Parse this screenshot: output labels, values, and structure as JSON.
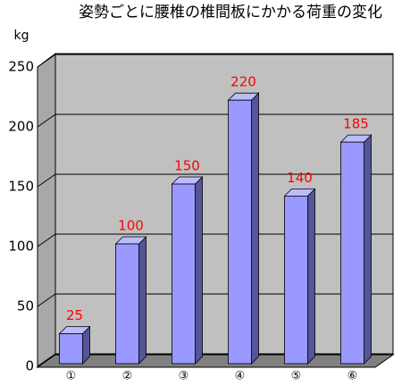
{
  "chart_data": {
    "type": "bar3d",
    "title": "姿勢ごとに腰椎の椎間板にかかる荷重の変化",
    "y_axis_label": "kg",
    "categories": [
      "①",
      "②",
      "③",
      "④",
      "⑤",
      "⑥"
    ],
    "values": [
      25,
      100,
      150,
      220,
      140,
      185
    ],
    "color": "#9999ff",
    "label_color": "#ff0000",
    "ylim": [
      0,
      250
    ],
    "yticks": [
      0,
      50,
      100,
      150,
      200,
      250
    ],
    "grid": true
  }
}
